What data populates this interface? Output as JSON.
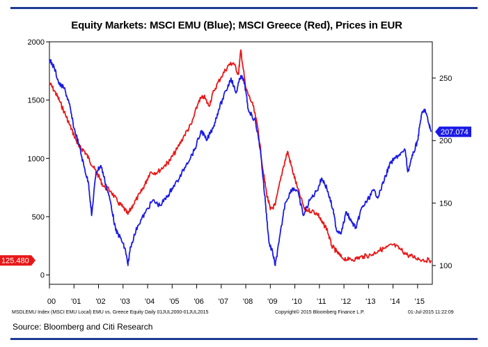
{
  "chart_data": {
    "type": "line",
    "title": "Equity Markets: MSCI EMU (Blue); MSCI Greece (Red), Prices in EUR",
    "x_tick_labels": [
      "00",
      "'01",
      "'02",
      "'03",
      "'04",
      "'05",
      "'06",
      "'07",
      "'08",
      "'09",
      "'10",
      "'11",
      "'12",
      "'13",
      "'14",
      "'15"
    ],
    "x_tick_years": [
      2000,
      2001,
      2002,
      2003,
      2004,
      2005,
      2006,
      2007,
      2008,
      2009,
      2010,
      2011,
      2012,
      2013,
      2014,
      2015
    ],
    "xlim": [
      2000.0,
      2015.6
    ],
    "left_axis": {
      "ylim": [
        -80,
        2000
      ],
      "ticks": [
        0,
        500,
        1000,
        1500,
        2000
      ]
    },
    "right_axis": {
      "ylim": [
        85,
        279
      ],
      "ticks": [
        100,
        150,
        200,
        250
      ]
    },
    "series": [
      {
        "name": "MSCI EMU",
        "color": "#1a1ae6",
        "axis": "right",
        "last_value_label": "207.074",
        "points": [
          [
            2000.0,
            265
          ],
          [
            2000.2,
            258
          ],
          [
            2000.4,
            245
          ],
          [
            2000.6,
            242
          ],
          [
            2000.8,
            230
          ],
          [
            2001.0,
            210
          ],
          [
            2001.2,
            197
          ],
          [
            2001.4,
            180
          ],
          [
            2001.6,
            165
          ],
          [
            2001.72,
            140
          ],
          [
            2001.9,
            175
          ],
          [
            2002.1,
            180
          ],
          [
            2002.3,
            165
          ],
          [
            2002.5,
            150
          ],
          [
            2002.7,
            128
          ],
          [
            2002.9,
            122
          ],
          [
            2003.1,
            112
          ],
          [
            2003.2,
            100
          ],
          [
            2003.3,
            115
          ],
          [
            2003.6,
            132
          ],
          [
            2003.9,
            142
          ],
          [
            2004.2,
            152
          ],
          [
            2004.5,
            148
          ],
          [
            2004.8,
            155
          ],
          [
            2005.0,
            162
          ],
          [
            2005.3,
            170
          ],
          [
            2005.6,
            182
          ],
          [
            2005.9,
            192
          ],
          [
            2006.2,
            208
          ],
          [
            2006.4,
            200
          ],
          [
            2006.7,
            212
          ],
          [
            2006.9,
            225
          ],
          [
            2007.2,
            240
          ],
          [
            2007.4,
            250
          ],
          [
            2007.6,
            238
          ],
          [
            2007.8,
            252
          ],
          [
            2007.95,
            246
          ],
          [
            2008.1,
            225
          ],
          [
            2008.4,
            215
          ],
          [
            2008.6,
            192
          ],
          [
            2008.8,
            150
          ],
          [
            2008.95,
            118
          ],
          [
            2009.1,
            110
          ],
          [
            2009.2,
            100
          ],
          [
            2009.35,
            118
          ],
          [
            2009.6,
            150
          ],
          [
            2009.9,
            162
          ],
          [
            2010.1,
            160
          ],
          [
            2010.35,
            140
          ],
          [
            2010.6,
            152
          ],
          [
            2010.9,
            160
          ],
          [
            2011.1,
            170
          ],
          [
            2011.3,
            162
          ],
          [
            2011.55,
            145
          ],
          [
            2011.7,
            128
          ],
          [
            2011.9,
            127
          ],
          [
            2012.1,
            143
          ],
          [
            2012.3,
            135
          ],
          [
            2012.5,
            130
          ],
          [
            2012.7,
            145
          ],
          [
            2012.95,
            152
          ],
          [
            2013.2,
            160
          ],
          [
            2013.4,
            155
          ],
          [
            2013.7,
            172
          ],
          [
            2013.9,
            182
          ],
          [
            2014.2,
            188
          ],
          [
            2014.5,
            192
          ],
          [
            2014.6,
            175
          ],
          [
            2014.8,
            188
          ],
          [
            2015.0,
            200
          ],
          [
            2015.15,
            220
          ],
          [
            2015.3,
            225
          ],
          [
            2015.45,
            214
          ],
          [
            2015.55,
            207
          ]
        ]
      },
      {
        "name": "MSCI Greece",
        "color": "#e81818",
        "axis": "left",
        "last_value_label": "125.480",
        "points": [
          [
            2000.0,
            1650
          ],
          [
            2000.2,
            1580
          ],
          [
            2000.4,
            1500
          ],
          [
            2000.6,
            1400
          ],
          [
            2000.8,
            1300
          ],
          [
            2001.0,
            1200
          ],
          [
            2001.2,
            1100
          ],
          [
            2001.4,
            1070
          ],
          [
            2001.6,
            1000
          ],
          [
            2001.8,
            920
          ],
          [
            2002.0,
            850
          ],
          [
            2002.2,
            760
          ],
          [
            2002.5,
            720
          ],
          [
            2002.8,
            620
          ],
          [
            2003.0,
            580
          ],
          [
            2003.2,
            520
          ],
          [
            2003.4,
            600
          ],
          [
            2003.7,
            700
          ],
          [
            2003.9,
            780
          ],
          [
            2004.1,
            880
          ],
          [
            2004.4,
            880
          ],
          [
            2004.7,
            940
          ],
          [
            2004.9,
            980
          ],
          [
            2005.2,
            1080
          ],
          [
            2005.5,
            1200
          ],
          [
            2005.8,
            1300
          ],
          [
            2006.1,
            1500
          ],
          [
            2006.3,
            1530
          ],
          [
            2006.5,
            1450
          ],
          [
            2006.7,
            1580
          ],
          [
            2007.0,
            1700
          ],
          [
            2007.3,
            1800
          ],
          [
            2007.5,
            1820
          ],
          [
            2007.7,
            1720
          ],
          [
            2007.8,
            1930
          ],
          [
            2008.0,
            1600
          ],
          [
            2008.3,
            1450
          ],
          [
            2008.5,
            1250
          ],
          [
            2008.7,
            900
          ],
          [
            2008.85,
            700
          ],
          [
            2009.0,
            560
          ],
          [
            2009.2,
            600
          ],
          [
            2009.5,
            900
          ],
          [
            2009.7,
            1060
          ],
          [
            2009.9,
            900
          ],
          [
            2010.1,
            750
          ],
          [
            2010.4,
            560
          ],
          [
            2010.7,
            550
          ],
          [
            2010.95,
            520
          ],
          [
            2011.1,
            450
          ],
          [
            2011.3,
            400
          ],
          [
            2011.5,
            250
          ],
          [
            2011.7,
            200
          ],
          [
            2011.9,
            150
          ],
          [
            2012.2,
            130
          ],
          [
            2012.5,
            140
          ],
          [
            2012.8,
            160
          ],
          [
            2013.1,
            170
          ],
          [
            2013.4,
            210
          ],
          [
            2013.7,
            230
          ],
          [
            2014.0,
            260
          ],
          [
            2014.3,
            220
          ],
          [
            2014.6,
            170
          ],
          [
            2014.9,
            150
          ],
          [
            2015.2,
            130
          ],
          [
            2015.55,
            125
          ]
        ]
      }
    ]
  },
  "footer": {
    "left": "MSDLEMU Index (MSCI EMU Local) EMU vs. Greece Equity  Daily 01JUL2000-01JUL2015",
    "mid": "Copyright© 2015 Bloomberg Finance L.P.",
    "right": "01-Jul-2015 11:22:09"
  },
  "source": "Source: Bloomberg and Citi Research"
}
